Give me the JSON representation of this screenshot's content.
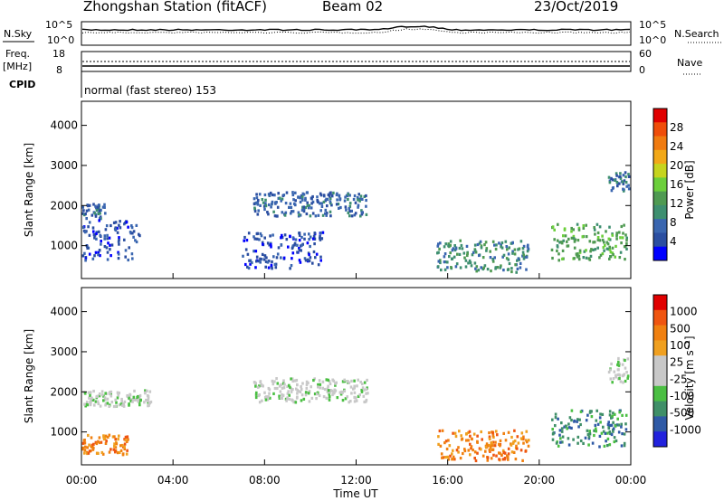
{
  "header": {
    "station": "Zhongshan Station (fitACF)",
    "beam": "Beam 02",
    "date": "23/Oct/2019"
  },
  "top_panels": {
    "nsky_label": "N.Sky",
    "nsearch_label": "N.Search",
    "noise_ticks": [
      "10^5",
      "10^0"
    ],
    "freq_label": "Freq.",
    "freq_unit": "[MHz]",
    "freq_ticks": [
      "18",
      "8"
    ],
    "nave_label": "Nave",
    "nave_ticks": [
      "60",
      "0"
    ],
    "cpid_label": "CPID",
    "cpid_text": "normal (fast stereo) 153"
  },
  "colors": {
    "power_scale": [
      "#0000ff",
      "#2b4ea1",
      "#3a66b0",
      "#3e8f70",
      "#4f9a52",
      "#6ccf3b",
      "#c6d41e",
      "#f2a818",
      "#f07b10",
      "#ef4d0a",
      "#e00000"
    ],
    "velocity_scale": [
      "#2222dd",
      "#2f5aa6",
      "#3f8f68",
      "#4bbf43",
      "#c8c8c8",
      "#c8c8c8",
      "#f0a020",
      "#f08010",
      "#ef5510",
      "#e00000"
    ]
  },
  "chart_data": [
    {
      "type": "heatmap",
      "name": "power",
      "ylabel": "Slant Range [km]",
      "colorbar_label": "Power [dB]",
      "colorbar_ticks": [
        "28",
        "24",
        "20",
        "16",
        "12",
        "8",
        "4"
      ],
      "ylim": [
        180,
        4600
      ],
      "ytick_labels": [
        "4000",
        "3000",
        "2000",
        "1000"
      ],
      "x_ticks": [
        "00:00",
        "04:00",
        "08:00",
        "12:00",
        "16:00",
        "20:00",
        "00:00"
      ],
      "xlabel": "Time UT",
      "scatter_regions": [
        {
          "t0": 0.0,
          "t1": 1.0,
          "r0": 1600,
          "r1": 2000,
          "level": 2
        },
        {
          "t0": 0.0,
          "t1": 2.5,
          "r0": 600,
          "r1": 1600,
          "level": 1
        },
        {
          "t0": 7.5,
          "t1": 12.5,
          "r0": 1700,
          "r1": 2300,
          "level": 2
        },
        {
          "t0": 7.0,
          "t1": 10.5,
          "r0": 400,
          "r1": 1300,
          "level": 1
        },
        {
          "t0": 15.5,
          "t1": 19.5,
          "r0": 300,
          "r1": 1100,
          "level": 3
        },
        {
          "t0": 20.5,
          "t1": 23.8,
          "r0": 600,
          "r1": 1500,
          "level": 4
        },
        {
          "t0": 23.0,
          "t1": 23.9,
          "r0": 2300,
          "r1": 2800,
          "level": 2
        }
      ]
    },
    {
      "type": "heatmap",
      "name": "velocity",
      "ylabel": "Slant Range [km]",
      "colorbar_label": "Velocity [m s⁻¹]",
      "colorbar_ticks": [
        "1000",
        "500",
        "100",
        "25",
        "-25",
        "-100",
        "-500",
        "-1000"
      ],
      "ylim": [
        180,
        4600
      ],
      "ytick_labels": [
        "4000",
        "3000",
        "2000",
        "1000"
      ],
      "x_ticks": [
        "00:00",
        "04:00",
        "08:00",
        "12:00",
        "16:00",
        "20:00",
        "00:00"
      ],
      "xlabel": "Time UT",
      "scatter_regions": [
        {
          "t0": 0.0,
          "t1": 3.0,
          "r0": 1600,
          "r1": 2000,
          "level": 4
        },
        {
          "t0": 0.0,
          "t1": 2.0,
          "r0": 400,
          "r1": 900,
          "level": 7
        },
        {
          "t0": 7.5,
          "t1": 12.5,
          "r0": 1700,
          "r1": 2300,
          "level": 4
        },
        {
          "t0": 15.5,
          "t1": 19.5,
          "r0": 250,
          "r1": 1000,
          "level": 7
        },
        {
          "t0": 20.5,
          "t1": 23.8,
          "r0": 600,
          "r1": 1500,
          "level": 2
        },
        {
          "t0": 23.0,
          "t1": 23.9,
          "r0": 2200,
          "r1": 2800,
          "level": 4
        }
      ]
    }
  ]
}
